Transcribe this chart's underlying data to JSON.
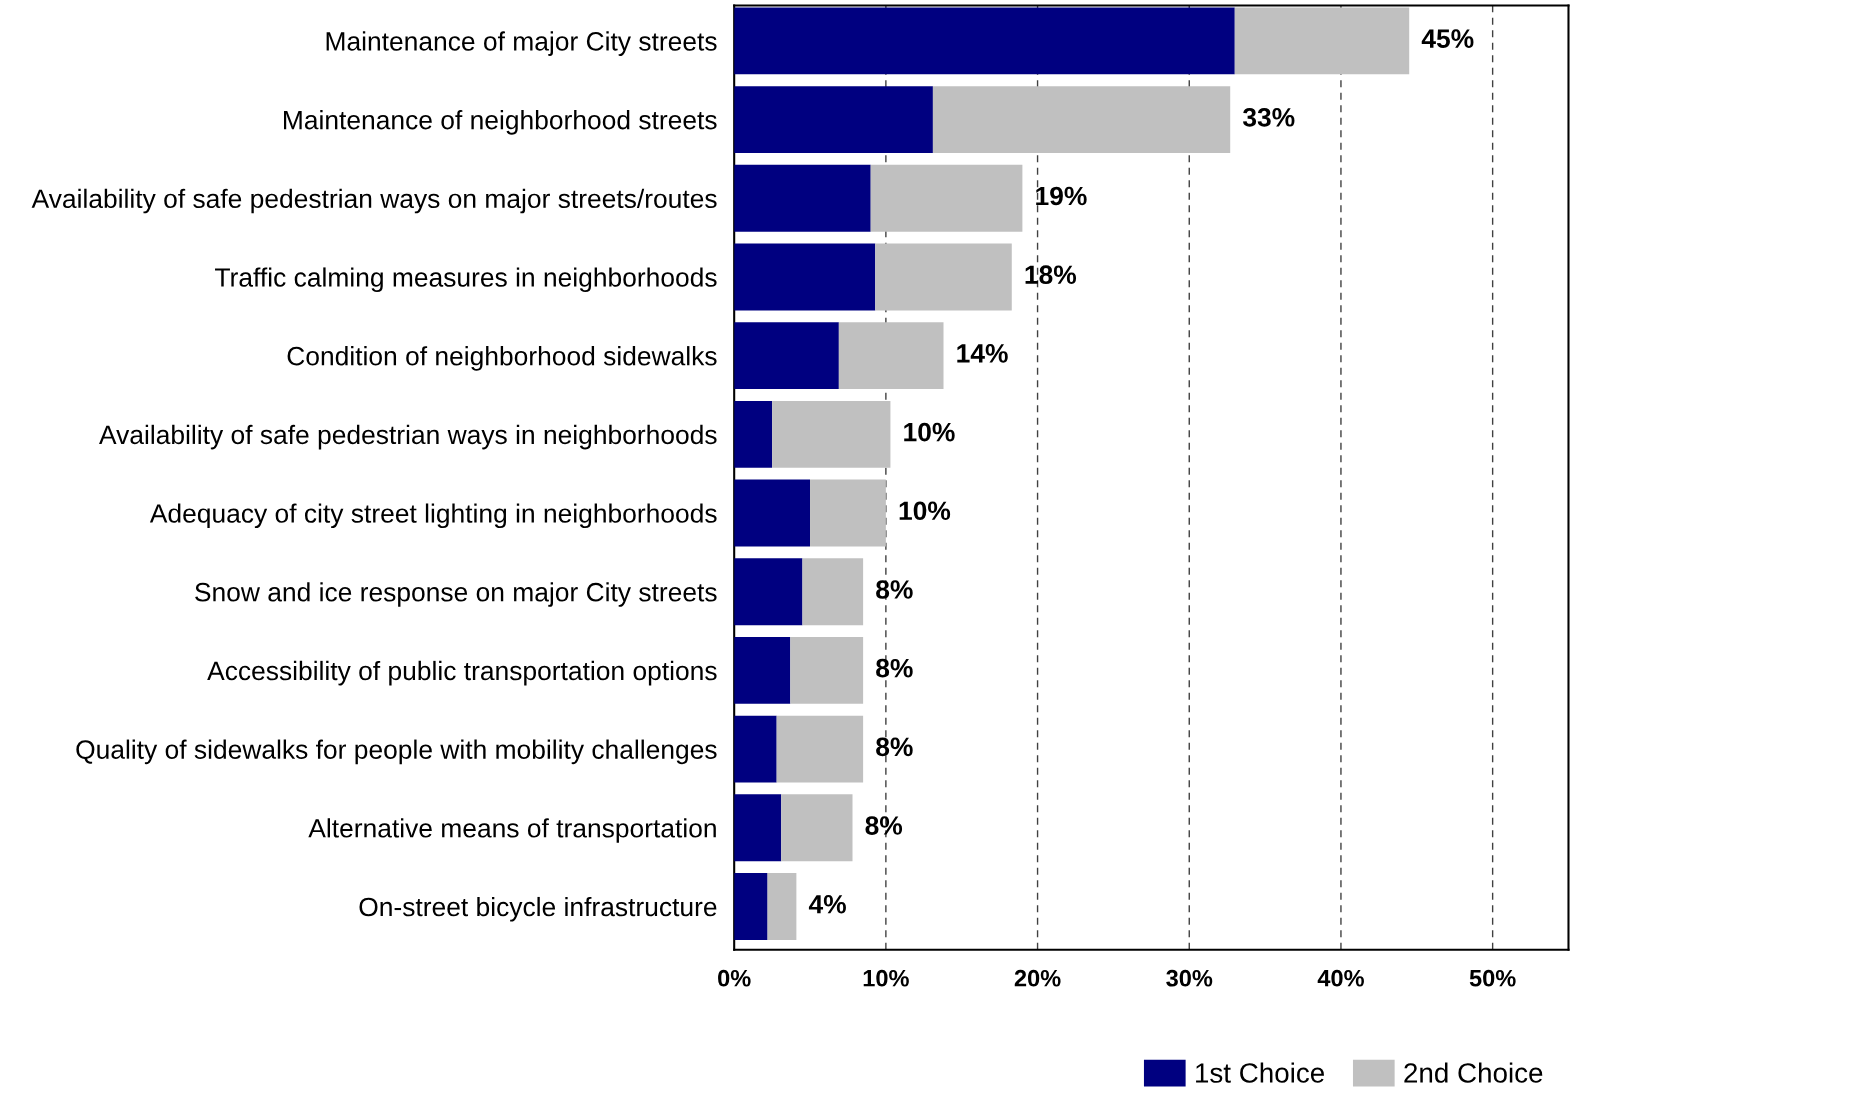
{
  "chart_data": {
    "type": "bar",
    "orientation": "horizontal",
    "stacked": true,
    "categories": [
      "Maintenance of major City streets",
      "Maintenance of neighborhood streets",
      "Availability of safe pedestrian ways on major streets/routes",
      "Traffic calming measures in neighborhoods",
      "Condition of neighborhood sidewalks",
      "Availability of safe pedestrian ways in neighborhoods",
      "Adequacy of city street lighting in neighborhoods",
      "Snow and ice response on major City streets",
      "Accessibility of public transportation options",
      "Quality of sidewalks for people with mobility challenges",
      "Alternative means of transportation",
      "On-street bicycle infrastructure"
    ],
    "series": [
      {
        "name": "1st Choice",
        "color": "#000080",
        "values": [
          33.0,
          13.1,
          9.0,
          9.3,
          6.9,
          2.5,
          5.0,
          4.5,
          3.7,
          2.8,
          3.1,
          2.2
        ]
      },
      {
        "name": "2nd Choice",
        "color": "#c0c0c0",
        "values": [
          11.5,
          19.6,
          10.0,
          9.0,
          6.9,
          7.8,
          5.0,
          4.0,
          4.8,
          5.7,
          4.7,
          1.9
        ]
      }
    ],
    "totals": [
      "45%",
      "33%",
      "19%",
      "18%",
      "14%",
      "10%",
      "10%",
      "8%",
      "8%",
      "8%",
      "8%",
      "4%"
    ],
    "xlim": [
      0,
      55
    ],
    "xticks": [
      {
        "value": 0,
        "label": "0%"
      },
      {
        "value": 10,
        "label": "10%"
      },
      {
        "value": 20,
        "label": "20%"
      },
      {
        "value": 30,
        "label": "30%"
      },
      {
        "value": 40,
        "label": "40%"
      },
      {
        "value": 50,
        "label": "50%"
      }
    ],
    "grid": "x",
    "legend": "bottom right"
  }
}
